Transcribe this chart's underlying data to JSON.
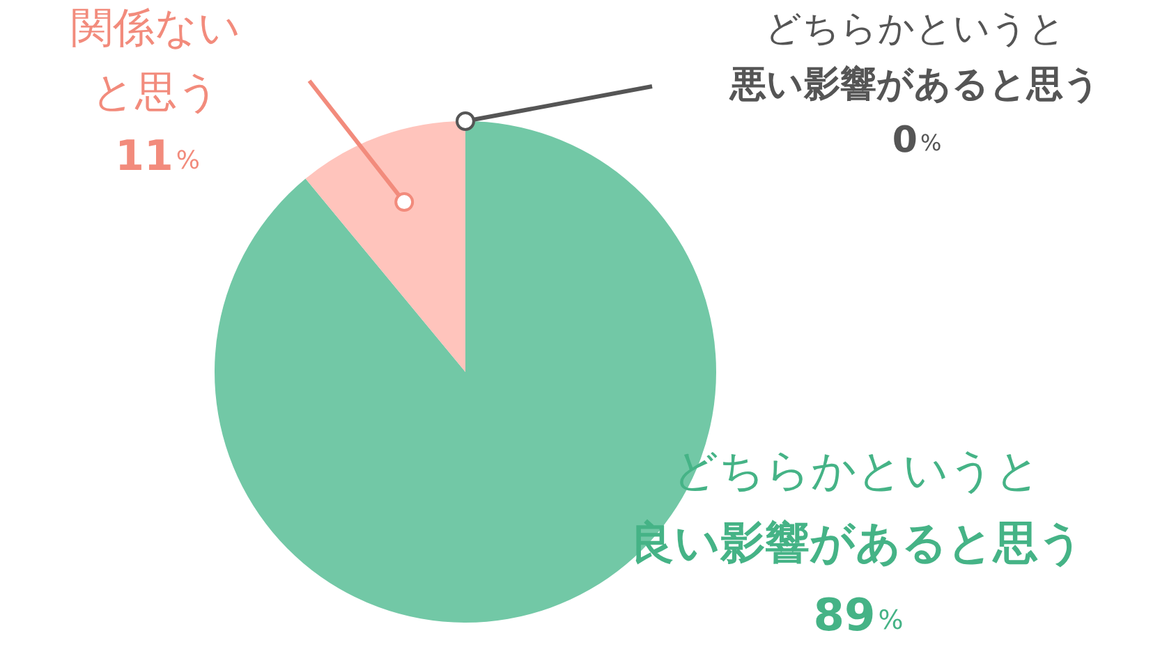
{
  "chart_data": {
    "type": "pie",
    "categories": [
      "どちらかというと良い影響があると思う",
      "関係ないと思う",
      "どちらかというと悪い影響があると思う"
    ],
    "values": [
      89,
      11,
      0
    ],
    "colors": [
      "#72c8a6",
      "#ffc4bc",
      "#555555"
    ],
    "value_labels": [
      "89%",
      "11%",
      "0%"
    ],
    "legend": false
  }
}
